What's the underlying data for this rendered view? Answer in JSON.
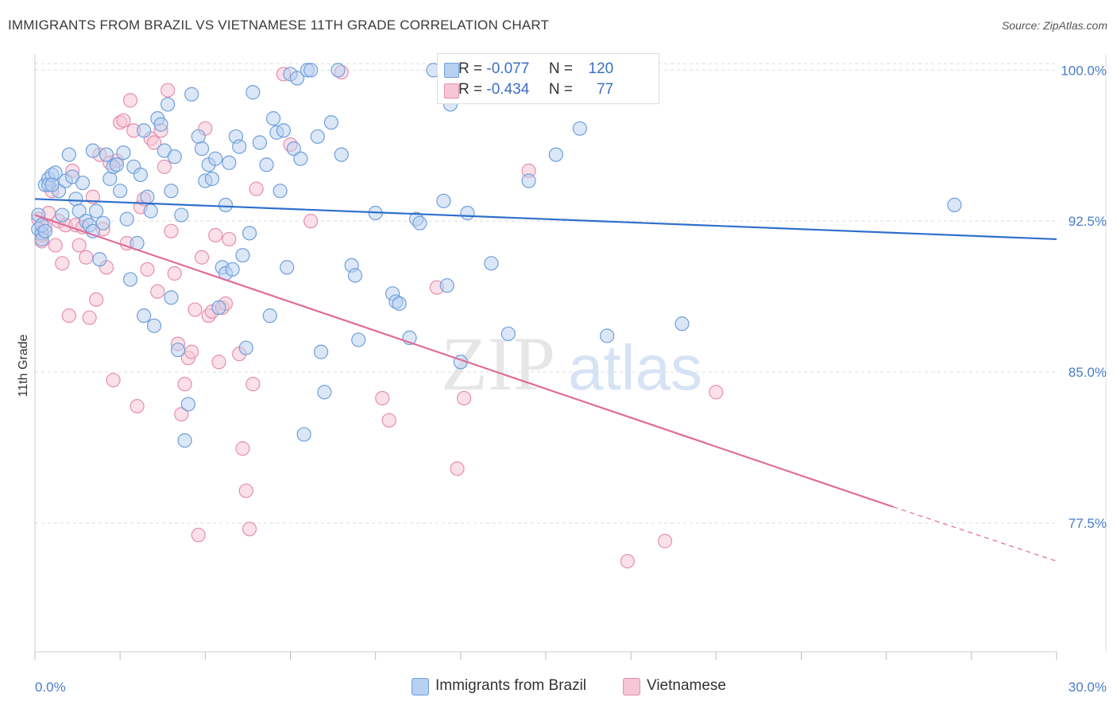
{
  "title": "IMMIGRANTS FROM BRAZIL VS VIETNAMESE 11TH GRADE CORRELATION CHART",
  "source": "Source: ZipAtlas.com",
  "watermark": {
    "zip": "ZIP",
    "atlas": "atlas"
  },
  "legend": {
    "brazil": {
      "r_label": "R =",
      "r_value": "-0.077",
      "n_label": "N =",
      "n_value": "120"
    },
    "vietnamese": {
      "r_label": "R =",
      "r_value": "-0.434",
      "n_label": "N =",
      "n_value": "77"
    }
  },
  "bottom_legend": {
    "brazil": "Immigrants from Brazil",
    "vietnamese": "Vietnamese"
  },
  "colors": {
    "brazil_fill": "#b7cff0",
    "brazil_stroke": "#6f9fdc",
    "brazil_line": "#2f6fcc",
    "viet_fill": "#f6c6d6",
    "viet_stroke": "#e68fae",
    "viet_line": "#e06c98",
    "tick_text": "#4a7cc7",
    "grid": "#dddddd"
  },
  "chart_data": {
    "type": "scatter",
    "title": "IMMIGRANTS FROM BRAZIL VS VIETNAMESE 11TH GRADE CORRELATION CHART",
    "xlabel": "",
    "ylabel": "11th Grade",
    "xlim": [
      0,
      30
    ],
    "ylim": [
      71.1,
      100.8
    ],
    "x_tick_labels": [
      "0.0%",
      "30.0%"
    ],
    "y_ticks": [
      100.0,
      92.5,
      85.0,
      77.5
    ],
    "y_tick_labels": [
      "100.0%",
      "92.5%",
      "85.0%",
      "77.5%"
    ],
    "grid": true,
    "legend_position": "top-center",
    "series": [
      {
        "name": "Immigrants from Brazil",
        "r": -0.077,
        "n": 120,
        "trend": {
          "x": [
            0,
            30
          ],
          "y": [
            93.6,
            91.6
          ]
        },
        "points": [
          [
            0.1,
            92.8
          ],
          [
            0.1,
            92.1
          ],
          [
            0.2,
            91.9
          ],
          [
            0.2,
            92.3
          ],
          [
            0.2,
            91.6
          ],
          [
            0.3,
            94.3
          ],
          [
            0.3,
            92.0
          ],
          [
            0.4,
            94.6
          ],
          [
            0.4,
            94.3
          ],
          [
            0.5,
            94.8
          ],
          [
            0.6,
            94.9
          ],
          [
            0.7,
            94.0
          ],
          [
            0.8,
            92.8
          ],
          [
            0.9,
            94.5
          ],
          [
            1.0,
            95.8
          ],
          [
            1.1,
            94.7
          ],
          [
            1.2,
            93.6
          ],
          [
            1.3,
            93.0
          ],
          [
            1.4,
            94.4
          ],
          [
            1.5,
            92.5
          ],
          [
            1.6,
            92.3
          ],
          [
            1.7,
            92.0
          ],
          [
            1.7,
            96.0
          ],
          [
            1.8,
            93.0
          ],
          [
            1.9,
            90.6
          ],
          [
            2.0,
            92.4
          ],
          [
            2.1,
            95.8
          ],
          [
            2.2,
            94.6
          ],
          [
            2.3,
            95.2
          ],
          [
            2.4,
            95.3
          ],
          [
            2.5,
            94.0
          ],
          [
            2.6,
            95.9
          ],
          [
            2.7,
            92.6
          ],
          [
            2.8,
            89.6
          ],
          [
            2.9,
            95.2
          ],
          [
            3.0,
            91.4
          ],
          [
            3.1,
            94.8
          ],
          [
            3.2,
            97.0
          ],
          [
            3.2,
            87.8
          ],
          [
            3.3,
            93.7
          ],
          [
            3.4,
            93.0
          ],
          [
            3.5,
            87.3
          ],
          [
            3.6,
            97.6
          ],
          [
            3.7,
            97.3
          ],
          [
            3.8,
            96.0
          ],
          [
            3.9,
            98.3
          ],
          [
            4.0,
            94.0
          ],
          [
            4.0,
            88.7
          ],
          [
            4.1,
            95.7
          ],
          [
            4.2,
            86.1
          ],
          [
            4.3,
            92.8
          ],
          [
            4.4,
            81.6
          ],
          [
            4.5,
            83.4
          ],
          [
            4.6,
            98.8
          ],
          [
            4.8,
            96.7
          ],
          [
            4.9,
            96.1
          ],
          [
            5.0,
            94.5
          ],
          [
            5.1,
            95.3
          ],
          [
            5.2,
            94.6
          ],
          [
            5.3,
            95.6
          ],
          [
            5.4,
            88.2
          ],
          [
            5.5,
            90.2
          ],
          [
            5.6,
            93.3
          ],
          [
            5.6,
            89.9
          ],
          [
            5.7,
            95.4
          ],
          [
            5.8,
            90.1
          ],
          [
            5.9,
            96.7
          ],
          [
            6.0,
            96.2
          ],
          [
            6.1,
            90.8
          ],
          [
            6.2,
            86.2
          ],
          [
            6.3,
            91.9
          ],
          [
            6.4,
            98.9
          ],
          [
            6.6,
            96.4
          ],
          [
            6.8,
            95.3
          ],
          [
            6.9,
            87.8
          ],
          [
            7.0,
            97.6
          ],
          [
            7.1,
            96.9
          ],
          [
            7.2,
            94.0
          ],
          [
            7.3,
            97.0
          ],
          [
            7.4,
            90.2
          ],
          [
            7.5,
            99.8
          ],
          [
            7.6,
            96.1
          ],
          [
            7.7,
            99.6
          ],
          [
            7.8,
            95.6
          ],
          [
            7.9,
            81.9
          ],
          [
            8.0,
            100.0
          ],
          [
            8.1,
            100.0
          ],
          [
            8.3,
            96.7
          ],
          [
            8.4,
            86.0
          ],
          [
            8.5,
            84.0
          ],
          [
            8.7,
            97.4
          ],
          [
            8.9,
            100.0
          ],
          [
            9.0,
            95.8
          ],
          [
            9.3,
            90.3
          ],
          [
            9.4,
            89.8
          ],
          [
            9.5,
            86.6
          ],
          [
            10.0,
            92.9
          ],
          [
            10.5,
            88.9
          ],
          [
            10.6,
            88.5
          ],
          [
            10.7,
            88.4
          ],
          [
            11.0,
            86.7
          ],
          [
            11.2,
            92.6
          ],
          [
            11.3,
            92.4
          ],
          [
            11.7,
            100.0
          ],
          [
            12.0,
            93.5
          ],
          [
            12.1,
            89.3
          ],
          [
            12.2,
            98.3
          ],
          [
            12.5,
            85.5
          ],
          [
            12.7,
            92.9
          ],
          [
            13.0,
            100.0
          ],
          [
            13.4,
            90.4
          ],
          [
            13.9,
            86.9
          ],
          [
            14.5,
            94.5
          ],
          [
            15.3,
            95.8
          ],
          [
            16.0,
            97.1
          ],
          [
            16.3,
            100.0
          ],
          [
            16.8,
            86.8
          ],
          [
            19.0,
            87.4
          ],
          [
            27.0,
            93.3
          ],
          [
            0.5,
            94.3
          ]
        ]
      },
      {
        "name": "Vietnamese",
        "r": -0.434,
        "n": 77,
        "trend": {
          "x": [
            0,
            25.2
          ],
          "y": [
            92.8,
            78.3
          ]
        },
        "trend_dashed": {
          "x": [
            25.2,
            30
          ],
          "y": [
            78.3,
            75.6
          ]
        },
        "points": [
          [
            0.1,
            92.6
          ],
          [
            0.2,
            91.5
          ],
          [
            0.2,
            91.8
          ],
          [
            0.3,
            92.2
          ],
          [
            0.4,
            92.9
          ],
          [
            0.5,
            94.0
          ],
          [
            0.6,
            91.3
          ],
          [
            0.7,
            92.5
          ],
          [
            0.8,
            90.4
          ],
          [
            0.9,
            92.3
          ],
          [
            1.0,
            87.8
          ],
          [
            1.1,
            95.0
          ],
          [
            1.2,
            92.3
          ],
          [
            1.3,
            91.3
          ],
          [
            1.4,
            92.2
          ],
          [
            1.5,
            90.7
          ],
          [
            1.6,
            87.7
          ],
          [
            1.7,
            93.7
          ],
          [
            1.8,
            88.6
          ],
          [
            1.9,
            95.8
          ],
          [
            2.0,
            92.1
          ],
          [
            2.1,
            90.2
          ],
          [
            2.2,
            95.4
          ],
          [
            2.3,
            84.6
          ],
          [
            2.4,
            95.5
          ],
          [
            2.5,
            97.4
          ],
          [
            2.6,
            97.5
          ],
          [
            2.7,
            91.4
          ],
          [
            2.8,
            98.5
          ],
          [
            2.9,
            97.0
          ],
          [
            3.0,
            83.3
          ],
          [
            3.1,
            93.2
          ],
          [
            3.2,
            93.6
          ],
          [
            3.3,
            90.1
          ],
          [
            3.4,
            96.6
          ],
          [
            3.5,
            96.4
          ],
          [
            3.6,
            89.0
          ],
          [
            3.7,
            97.0
          ],
          [
            3.8,
            95.2
          ],
          [
            3.9,
            99.0
          ],
          [
            4.0,
            92.0
          ],
          [
            4.1,
            89.9
          ],
          [
            4.2,
            86.4
          ],
          [
            4.3,
            82.9
          ],
          [
            4.4,
            84.4
          ],
          [
            4.5,
            85.7
          ],
          [
            4.6,
            86.0
          ],
          [
            4.7,
            88.1
          ],
          [
            4.8,
            76.9
          ],
          [
            4.9,
            90.7
          ],
          [
            5.0,
            97.1
          ],
          [
            5.1,
            87.8
          ],
          [
            5.2,
            88.0
          ],
          [
            5.3,
            91.8
          ],
          [
            5.4,
            85.5
          ],
          [
            5.5,
            88.2
          ],
          [
            5.6,
            88.4
          ],
          [
            5.7,
            91.6
          ],
          [
            6.0,
            85.9
          ],
          [
            6.1,
            81.2
          ],
          [
            6.2,
            79.1
          ],
          [
            6.3,
            77.2
          ],
          [
            6.4,
            84.4
          ],
          [
            6.5,
            94.1
          ],
          [
            7.3,
            99.8
          ],
          [
            7.5,
            96.3
          ],
          [
            8.1,
            92.5
          ],
          [
            9.0,
            99.9
          ],
          [
            10.2,
            83.7
          ],
          [
            10.4,
            82.6
          ],
          [
            12.4,
            80.2
          ],
          [
            12.6,
            83.7
          ],
          [
            14.5,
            95.0
          ],
          [
            17.4,
            75.6
          ],
          [
            18.5,
            76.6
          ],
          [
            20.0,
            84.0
          ],
          [
            11.8,
            89.2
          ]
        ]
      }
    ]
  }
}
